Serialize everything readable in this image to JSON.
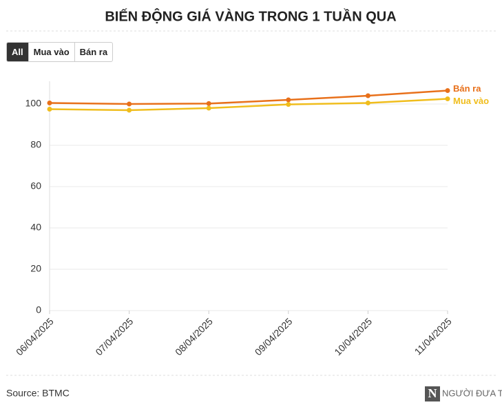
{
  "chart_data": {
    "type": "line",
    "title": "BIẾN ĐỘNG GIÁ VÀNG TRONG 1 TUẦN QUA",
    "buttons": [
      "All",
      "Mua vào",
      "Bán ra"
    ],
    "categories": [
      "06/04/2025",
      "07/04/2025",
      "08/04/2025",
      "09/04/2025",
      "10/04/2025",
      "11/04/2025"
    ],
    "series": [
      {
        "name": "Bán ra",
        "color": "#e8701a",
        "values": [
          100.5,
          100,
          100.2,
          102,
          104,
          106.5
        ]
      },
      {
        "name": "Mua vào",
        "color": "#f0bd1c",
        "values": [
          97.5,
          97,
          98,
          99.8,
          100.5,
          102.5
        ]
      }
    ],
    "ylim": [
      0,
      111
    ],
    "yticks": [
      0,
      20,
      40,
      60,
      80,
      100
    ],
    "grid": true,
    "source": "Source: BTMC",
    "logo": "NGƯỜI ĐƯA TIN"
  }
}
